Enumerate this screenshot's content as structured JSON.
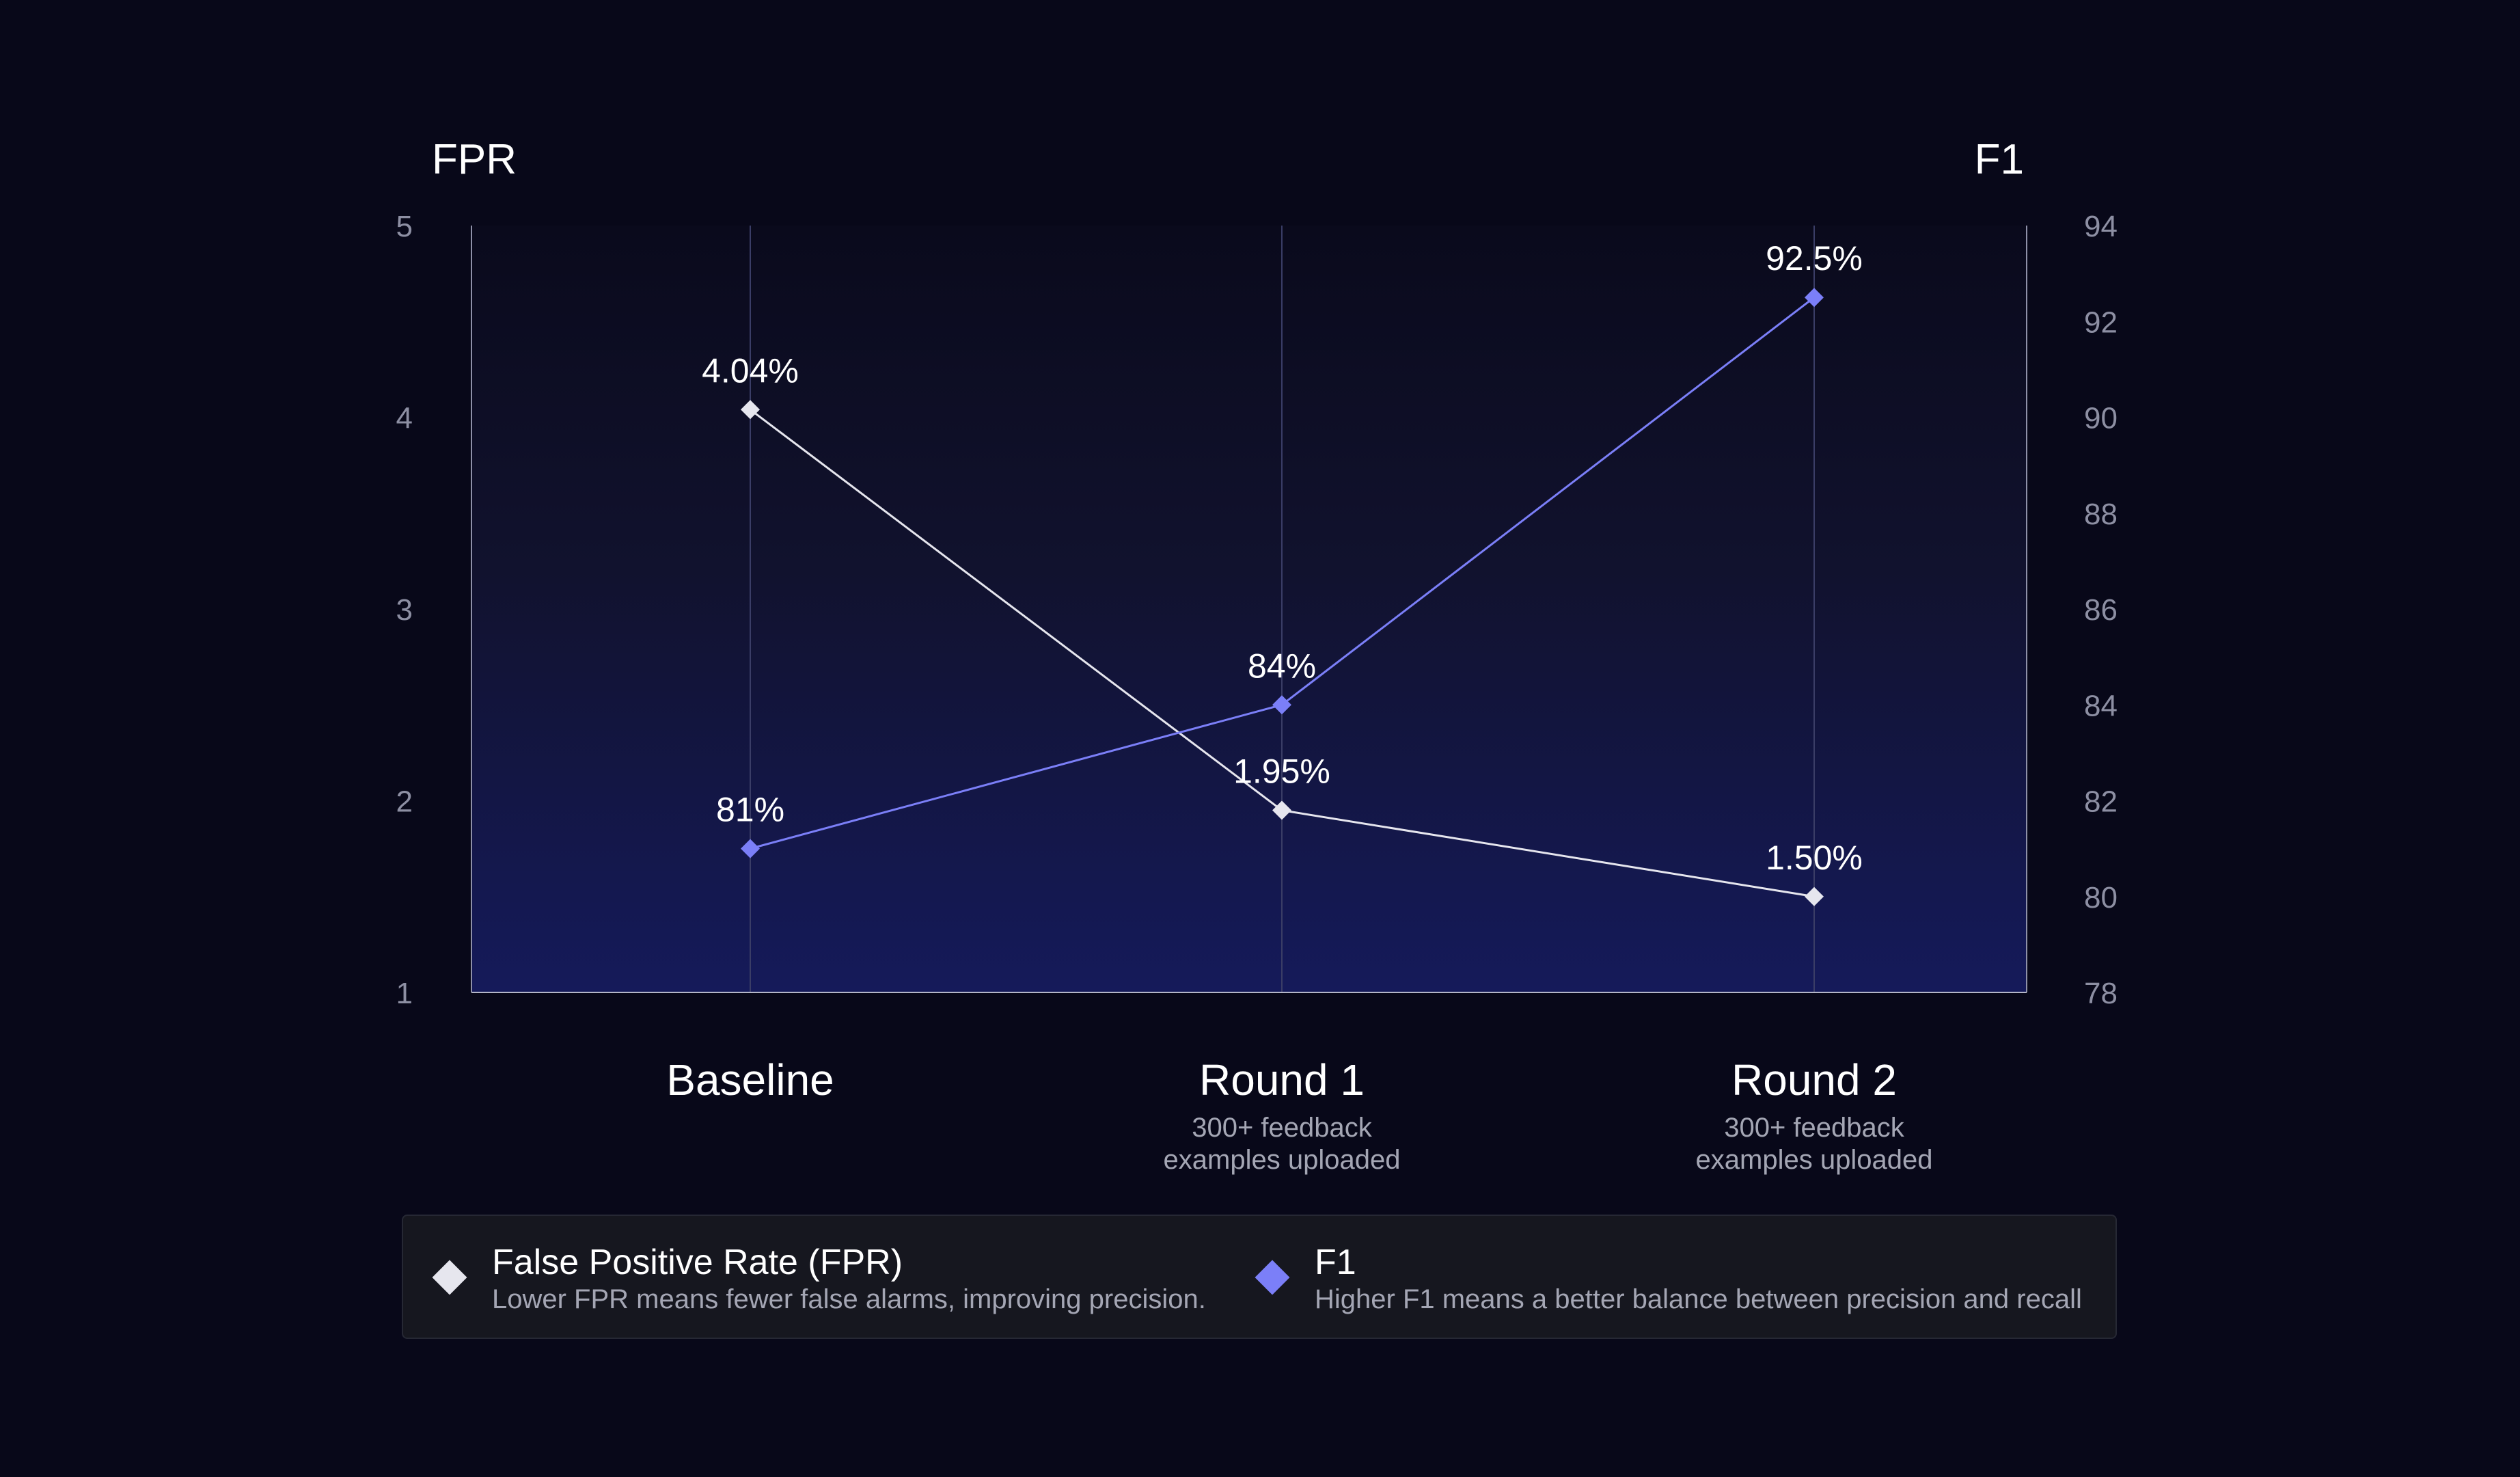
{
  "chart_data": {
    "type": "line",
    "categories": [
      "Baseline",
      "Round 1",
      "Round 2"
    ],
    "category_sublabels": [
      "",
      "300+ feedback\nexamples uploaded",
      "300+ feedback\nexamples uploaded"
    ],
    "left_axis": {
      "label": "FPR",
      "ylim": [
        1,
        5
      ],
      "ticks": [
        "1",
        "2",
        "3",
        "4",
        "5"
      ]
    },
    "right_axis": {
      "label": "F1",
      "ylim": [
        78,
        94
      ],
      "ticks": [
        "78",
        "80",
        "82",
        "84",
        "86",
        "88",
        "90",
        "92",
        "94"
      ]
    },
    "series": [
      {
        "name": "False Positive Rate (FPR)",
        "axis": "left",
        "values": [
          4.04,
          1.95,
          1.5
        ],
        "data_labels": [
          "4.04%",
          "1.95%",
          "1.50%"
        ],
        "color": "#e6e6ee"
      },
      {
        "name": "F1",
        "axis": "right",
        "values": [
          81,
          84,
          92.5
        ],
        "data_labels": [
          "81%",
          "84%",
          "92.5%"
        ],
        "color": "#7b7ff8"
      }
    ],
    "grid": "vertical lines at categories",
    "legend": {
      "placement": "bottom",
      "items": [
        {
          "title": "False Positive Rate (FPR)",
          "description": "Lower FPR means fewer false alarms, improving precision.",
          "color": "#e6e6ee"
        },
        {
          "title": "F1",
          "description": "Higher F1 means a better balance between precision and recall",
          "color": "#7b7ff8"
        }
      ]
    }
  }
}
